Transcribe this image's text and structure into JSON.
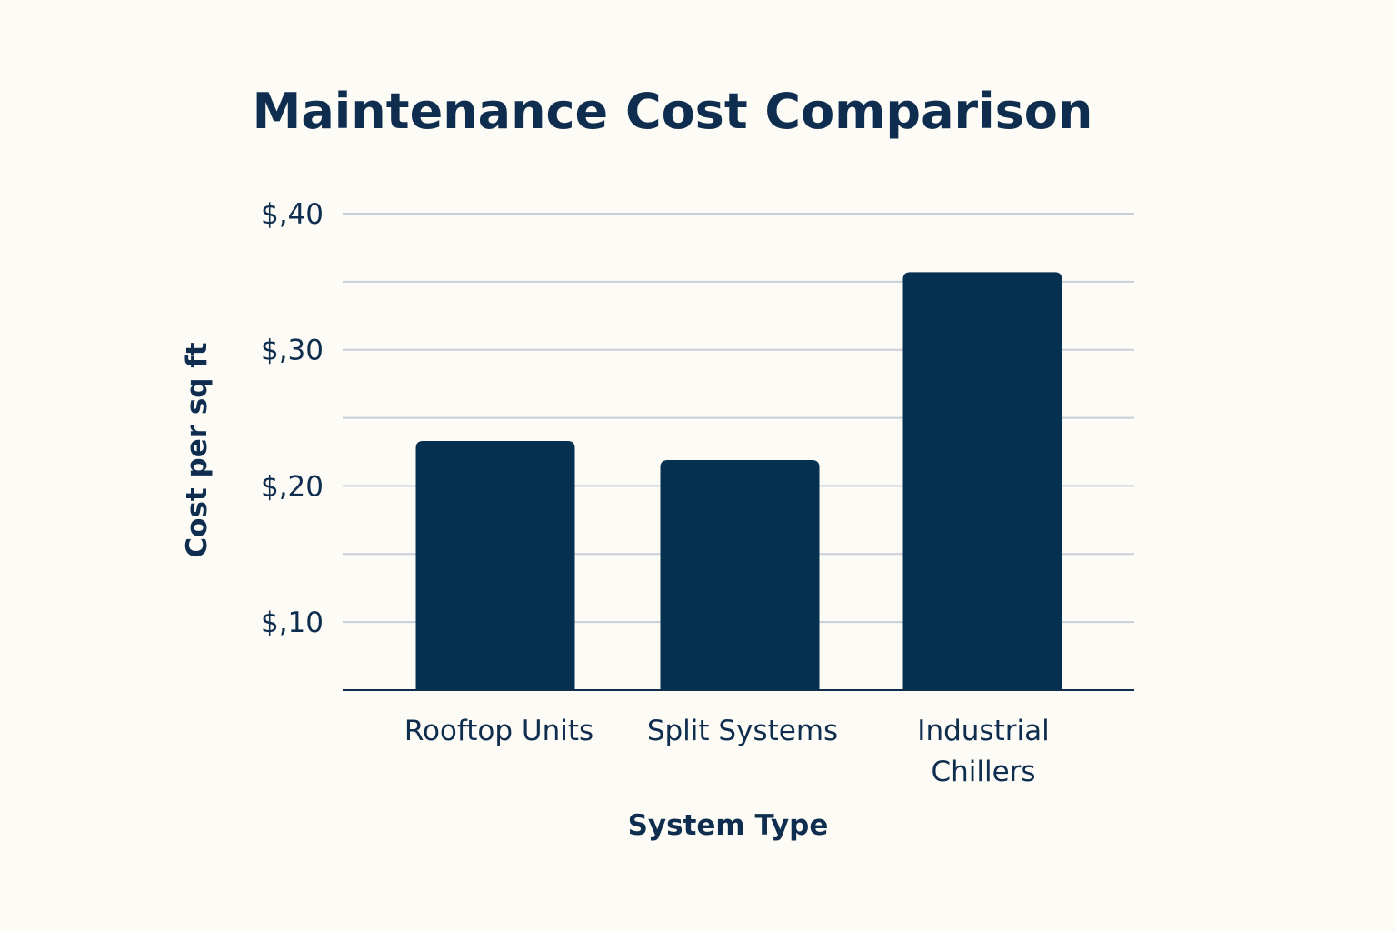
{
  "chart_data": {
    "type": "bar",
    "title": "Maintenance Cost Comparison",
    "xlabel": "System Type",
    "ylabel": "Cost per sq ft",
    "categories": [
      [
        "Rooftop Units"
      ],
      [
        "Split Systems"
      ],
      [
        "Industrial",
        "Chillers"
      ]
    ],
    "values": [
      0.233,
      0.219,
      0.357
    ],
    "ylim": [
      0.05,
      0.4
    ],
    "yticks": [
      {
        "value": 0.4,
        "label": "$,40"
      },
      {
        "value": 0.3,
        "label": "$,30"
      },
      {
        "value": 0.2,
        "label": "$,20"
      },
      {
        "value": 0.1,
        "label": "$,10"
      }
    ],
    "gridlines": [
      0.4,
      0.35,
      0.3,
      0.25,
      0.2,
      0.15,
      0.1
    ],
    "grid": true,
    "legend": "none",
    "colors": {
      "bar": "#053050",
      "text": "#0f2d4e",
      "grid": "#c9cedb",
      "background": "#fcfbf5"
    }
  }
}
